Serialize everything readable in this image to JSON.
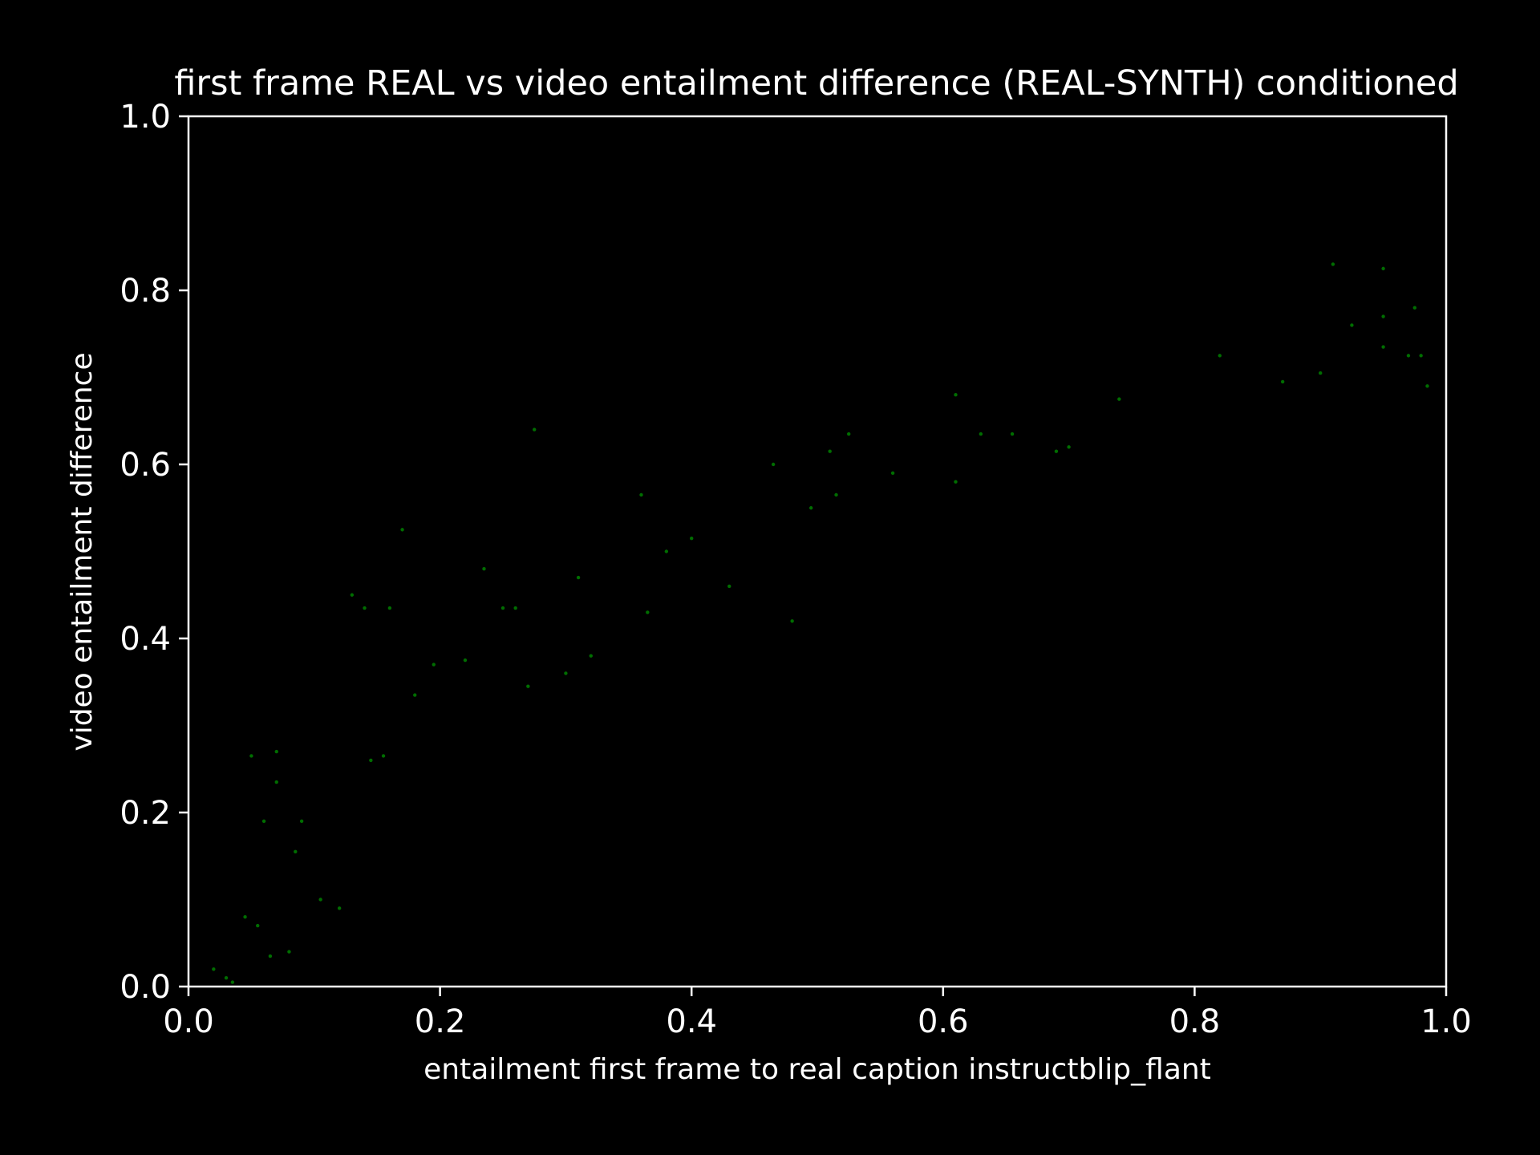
{
  "chart_data": {
    "type": "scatter",
    "title": "first frame REAL vs video entailment difference (REAL-SYNTH) conditioned",
    "xlabel": "entailment first frame to real caption instructblip_flant",
    "ylabel": "video entailment difference",
    "xlim": [
      0.0,
      1.0
    ],
    "ylim": [
      0.0,
      1.0
    ],
    "x_ticks": [
      "0.0",
      "0.2",
      "0.4",
      "0.6",
      "0.8",
      "1.0"
    ],
    "y_ticks": [
      "0.0",
      "0.2",
      "0.4",
      "0.6",
      "0.8",
      "1.0"
    ],
    "grid": false,
    "legend": "none",
    "colors": {
      "background": "#000000",
      "axes": "#ffffff",
      "text": "#ffffff",
      "points": "#008000"
    },
    "series": [
      {
        "points": [
          [
            0.91,
            0.83
          ],
          [
            0.95,
            0.825
          ],
          [
            0.975,
            0.78
          ],
          [
            0.95,
            0.77
          ],
          [
            0.925,
            0.76
          ],
          [
            0.985,
            0.69
          ],
          [
            0.95,
            0.735
          ],
          [
            0.97,
            0.725
          ],
          [
            0.98,
            0.725
          ],
          [
            0.9,
            0.705
          ],
          [
            0.87,
            0.695
          ],
          [
            0.82,
            0.725
          ],
          [
            0.74,
            0.675
          ],
          [
            0.61,
            0.68
          ],
          [
            0.275,
            0.64
          ],
          [
            0.525,
            0.635
          ],
          [
            0.63,
            0.635
          ],
          [
            0.655,
            0.635
          ],
          [
            0.51,
            0.615
          ],
          [
            0.465,
            0.6
          ],
          [
            0.69,
            0.615
          ],
          [
            0.7,
            0.62
          ],
          [
            0.17,
            0.525
          ],
          [
            0.4,
            0.515
          ],
          [
            0.36,
            0.565
          ],
          [
            0.515,
            0.565
          ],
          [
            0.56,
            0.59
          ],
          [
            0.61,
            0.58
          ],
          [
            0.495,
            0.55
          ],
          [
            0.235,
            0.48
          ],
          [
            0.38,
            0.5
          ],
          [
            0.31,
            0.47
          ],
          [
            0.13,
            0.45
          ],
          [
            0.14,
            0.435
          ],
          [
            0.16,
            0.435
          ],
          [
            0.25,
            0.435
          ],
          [
            0.26,
            0.435
          ],
          [
            0.43,
            0.46
          ],
          [
            0.48,
            0.42
          ],
          [
            0.365,
            0.43
          ],
          [
            0.195,
            0.37
          ],
          [
            0.22,
            0.375
          ],
          [
            0.3,
            0.36
          ],
          [
            0.32,
            0.38
          ],
          [
            0.27,
            0.345
          ],
          [
            0.18,
            0.335
          ],
          [
            0.07,
            0.27
          ],
          [
            0.05,
            0.265
          ],
          [
            0.145,
            0.26
          ],
          [
            0.155,
            0.265
          ],
          [
            0.07,
            0.235
          ],
          [
            0.06,
            0.19
          ],
          [
            0.09,
            0.19
          ],
          [
            0.085,
            0.155
          ],
          [
            0.045,
            0.08
          ],
          [
            0.055,
            0.07
          ],
          [
            0.065,
            0.035
          ],
          [
            0.08,
            0.04
          ],
          [
            0.03,
            0.01
          ],
          [
            0.02,
            0.02
          ],
          [
            0.105,
            0.1
          ],
          [
            0.12,
            0.09
          ],
          [
            0.035,
            0.005
          ]
        ]
      }
    ]
  }
}
